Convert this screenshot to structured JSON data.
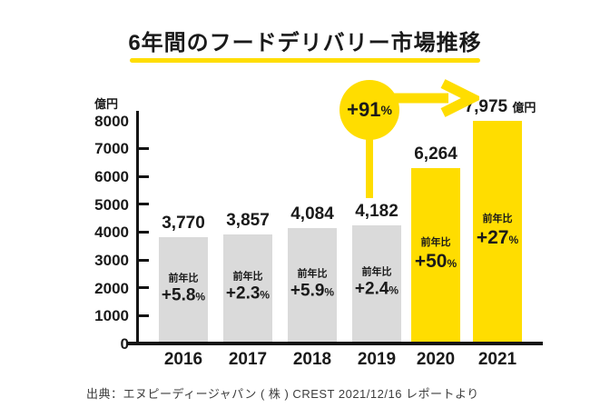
{
  "title": "6年間のフードデリバリー市場推移",
  "percent_sign": "%",
  "y_axis": {
    "unit": "億円",
    "ticks": [
      "8000",
      "7000",
      "6000",
      "5000",
      "4000",
      "3000",
      "2000",
      "1000",
      "0"
    ]
  },
  "highlight": {
    "value": "+91"
  },
  "source": "出典：エヌピーディージャパン ( 株 ) CREST 2021/12/16 レポートより",
  "colors": {
    "accent_yellow": "#ffdd00",
    "bar_gray": "#dadada",
    "ink": "#1a1a1a"
  },
  "chart_data": {
    "type": "bar",
    "title": "6年間のフードデリバリー市場推移",
    "ylabel": "億円",
    "ylim": [
      0,
      8000
    ],
    "grid": false,
    "categories": [
      "2016",
      "2017",
      "2018",
      "2019",
      "2020",
      "2021"
    ],
    "values": [
      3770,
      3857,
      4084,
      4182,
      6264,
      7975
    ],
    "value_labels": [
      "3,770",
      "3,857",
      "4,084",
      "4,182",
      "6,264",
      "7,975"
    ],
    "value_suffixes": [
      "",
      "",
      "",
      "",
      "",
      "億円"
    ],
    "yoy_prefix": "前年比",
    "yoy_values": [
      "+5.8",
      "+2.3",
      "+5.9",
      "+2.4",
      "+50",
      "+27"
    ],
    "bar_colors": [
      "#dadada",
      "#dadada",
      "#dadada",
      "#dadada",
      "#ffdd00",
      "#ffdd00"
    ],
    "annotation": {
      "text": "+91%",
      "from": "2019",
      "to": "2021"
    }
  }
}
